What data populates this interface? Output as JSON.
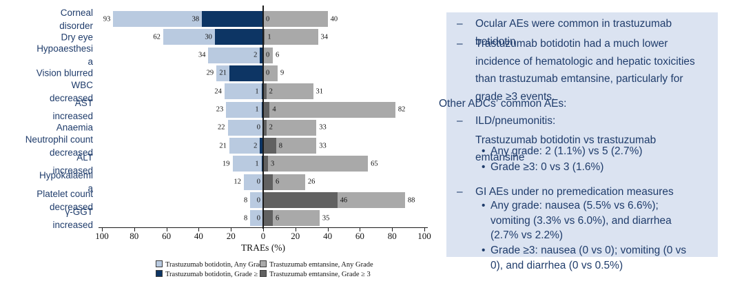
{
  "chart_data": {
    "type": "bar",
    "variant": "diverging-stacked-horizontal",
    "xlabel": "TRAEs (%)",
    "axis_ticks": [
      100,
      80,
      60,
      40,
      20,
      0,
      20,
      40,
      60,
      80,
      100
    ],
    "axis_range_each_side": [
      0,
      100
    ],
    "grid": false,
    "legend_position": "bottom",
    "categories": [
      "Corneal disorder",
      "Dry eye",
      "Hypoaesthesia",
      "Vision blurred",
      "WBC decreased",
      "AST increased",
      "Anaemia",
      "Neutrophil count decreased",
      "ALT increased",
      "Hypokalaemia",
      "Platelet count decreased",
      "γ-GGT increased"
    ],
    "categories_display_lines": [
      [
        "Corneal",
        "disorder"
      ],
      [
        "Dry eye"
      ],
      [
        "Hypoaesthesi",
        "a"
      ],
      [
        "Vision blurred"
      ],
      [
        "WBC",
        "decreased"
      ],
      [
        "AST",
        "increased"
      ],
      [
        "Anaemia"
      ],
      [
        "Neutrophil count",
        "decreased"
      ],
      [
        "ALT",
        "increased"
      ],
      [
        "Hypokalaemi",
        "a"
      ],
      [
        "Platelet count",
        "decreased"
      ],
      [
        "γ-GGT",
        "increased"
      ]
    ],
    "series": [
      {
        "name": "Trastuzumab botidotin, Any Grade",
        "side": "left",
        "color": "#b9cae0",
        "values": [
          93,
          62,
          34,
          29,
          24,
          23,
          22,
          21,
          19,
          12,
          8,
          8
        ]
      },
      {
        "name": "Trastuzumab botidotin, Grade ≥ 3",
        "side": "left",
        "color": "#0d3564",
        "values": [
          38,
          30,
          2,
          21,
          1,
          1,
          0,
          2,
          1,
          0,
          0,
          0
        ]
      },
      {
        "name": "Trastuzumab emtansine, Any Grade",
        "side": "right",
        "color": "#a9a9a9",
        "values": [
          40,
          34,
          6,
          9,
          31,
          82,
          33,
          33,
          65,
          26,
          88,
          35
        ]
      },
      {
        "name": "Trastuzumab emtansine, Grade ≥ 3",
        "side": "right",
        "color": "#616161",
        "values": [
          0,
          1,
          0,
          0,
          2,
          4,
          2,
          8,
          3,
          6,
          46,
          6
        ]
      }
    ],
    "legend_order_row_major": [
      0,
      2,
      1,
      3
    ]
  },
  "panel": {
    "background_color": "#dbe3f1",
    "text_color": "#1f3c6b",
    "items": [
      {
        "bullet": "dash",
        "lines": [
          "Ocular AEs were common in trastuzumab",
          "botidotin"
        ]
      },
      {
        "bullet": "dash",
        "lines": [
          "Trastuzumab botidotin had a much lower",
          "incidence of hematologic and hepatic toxicities",
          "than trastuzumab emtansine, particularly for",
          "grade ≥3 events."
        ]
      },
      {
        "bullet": "none",
        "lines": [
          "Other ADCs’ common AEs:"
        ]
      },
      {
        "bullet": "dash",
        "lines": [
          "ILD/pneumonitis:"
        ]
      },
      {
        "bullet": "none",
        "lines": [
          "Trastuzumab botidotin vs trastuzumab",
          "emtansine"
        ]
      },
      {
        "bullet": "dot",
        "lines": [
          "Any grade: 2 (1.1%) vs 5 (2.7%)"
        ]
      },
      {
        "bullet": "dot",
        "lines": [
          "Grade ≥3: 0 vs 3 (1.6%)"
        ]
      },
      {
        "bullet": "dash",
        "lines": [
          "GI AEs under no premedication measures"
        ]
      },
      {
        "bullet": "dot",
        "lines": [
          "Any grade: nausea (5.5% vs 6.6%);",
          "vomiting (3.3% vs 6.0%), and diarrhea",
          "(2.7% vs 2.2%)"
        ]
      },
      {
        "bullet": "dot",
        "lines": [
          "Grade ≥3: nausea (0 vs 0); vomiting (0 vs",
          "0), and diarrhea (0 vs 0.5%)"
        ]
      }
    ]
  }
}
